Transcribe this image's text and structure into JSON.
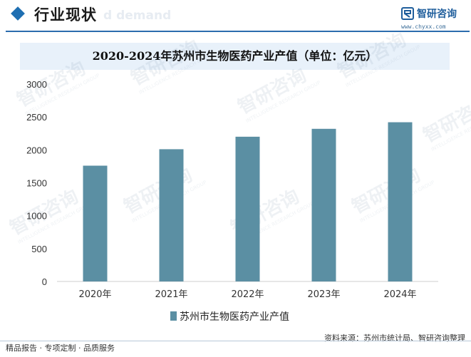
{
  "header": {
    "section_title": "行业现状",
    "ghost_text": "d demand",
    "logo_name": "智研咨询",
    "logo_url": "www.chyxx.com"
  },
  "chart_data": {
    "type": "bar",
    "title": "2020-2024年苏州市生物医药产业产值（单位：亿元）",
    "categories": [
      "2020年",
      "2021年",
      "2022年",
      "2023年",
      "2024年"
    ],
    "series": [
      {
        "name": "苏州市生物医药产业产值",
        "values": [
          1760,
          2010,
          2200,
          2320,
          2420
        ]
      }
    ],
    "ylim": [
      0,
      3000
    ],
    "yticks": [
      0,
      500,
      1000,
      1500,
      2000,
      2500,
      3000
    ],
    "xlabel": "",
    "ylabel": "",
    "grid": false,
    "legend": "bottom",
    "bar_color": "#5b8fa3"
  },
  "footer": {
    "left": "精品报告 · 专项定制 · 品质服务",
    "source": "资料来源：苏州市统计局、智研咨询整理"
  },
  "watermark": {
    "text": "智研咨询",
    "subtext": "INTELLIGENCE RESEARCH GROUP"
  }
}
